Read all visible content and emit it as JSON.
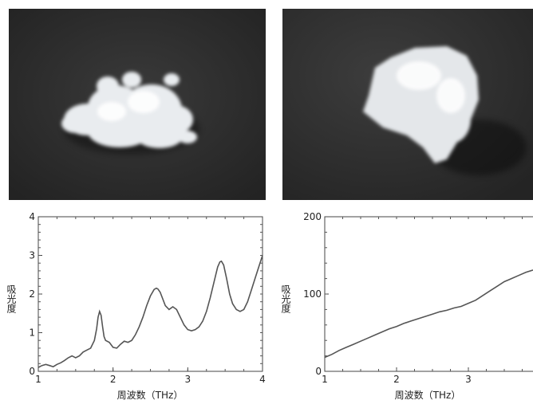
{
  "photos": [
    {
      "name": "sample-photo-left",
      "bg": "#2c2c2c",
      "sample": "white-powder-clump"
    },
    {
      "name": "sample-photo-right",
      "bg": "#303030",
      "sample": "white-fluffy-fiber"
    }
  ],
  "chart_data": [
    {
      "type": "line",
      "title": "",
      "xlabel": "周波数（THz）",
      "ylabel": "吸光度",
      "xlim": [
        1,
        4
      ],
      "ylim": [
        0,
        4
      ],
      "xticks": [
        "1",
        "2",
        "3",
        "4"
      ],
      "yticks": [
        "0",
        "1",
        "2",
        "3",
        "4"
      ],
      "grid": false,
      "line_color": "#555555",
      "series": [
        {
          "x": [
            1.0,
            1.05,
            1.1,
            1.15,
            1.2,
            1.25,
            1.3,
            1.35,
            1.4,
            1.45,
            1.5,
            1.55,
            1.6,
            1.65,
            1.7,
            1.75,
            1.78,
            1.8,
            1.82,
            1.84,
            1.86,
            1.88,
            1.9,
            1.95,
            2.0,
            2.05,
            2.1,
            2.15,
            2.2,
            2.25,
            2.3,
            2.35,
            2.4,
            2.45,
            2.5,
            2.55,
            2.58,
            2.6,
            2.63,
            2.66,
            2.7,
            2.75,
            2.8,
            2.85,
            2.9,
            2.95,
            3.0,
            3.05,
            3.1,
            3.15,
            3.2,
            3.25,
            3.3,
            3.35,
            3.4,
            3.43,
            3.45,
            3.48,
            3.52,
            3.56,
            3.6,
            3.65,
            3.7,
            3.75,
            3.8,
            3.85,
            3.9,
            3.95,
            4.0
          ],
          "y": [
            0.1,
            0.15,
            0.18,
            0.15,
            0.12,
            0.18,
            0.22,
            0.28,
            0.35,
            0.4,
            0.35,
            0.4,
            0.5,
            0.55,
            0.6,
            0.8,
            1.1,
            1.4,
            1.55,
            1.45,
            1.15,
            0.9,
            0.8,
            0.75,
            0.62,
            0.6,
            0.7,
            0.78,
            0.75,
            0.8,
            0.95,
            1.15,
            1.4,
            1.7,
            1.95,
            2.12,
            2.15,
            2.13,
            2.05,
            1.9,
            1.7,
            1.6,
            1.67,
            1.6,
            1.4,
            1.2,
            1.08,
            1.05,
            1.08,
            1.15,
            1.3,
            1.55,
            1.9,
            2.3,
            2.7,
            2.83,
            2.85,
            2.75,
            2.4,
            2.0,
            1.75,
            1.6,
            1.55,
            1.6,
            1.8,
            2.1,
            2.4,
            2.7,
            3.0
          ]
        }
      ]
    },
    {
      "type": "line",
      "title": "",
      "xlabel": "周波数（THz）",
      "ylabel": "吸光度",
      "xlim": [
        1,
        4
      ],
      "ylim": [
        0,
        200
      ],
      "xticks": [
        "1",
        "2",
        "3"
      ],
      "yticks": [
        "0",
        "100",
        "200"
      ],
      "grid": false,
      "line_color": "#555555",
      "series": [
        {
          "x": [
            1.0,
            1.1,
            1.2,
            1.3,
            1.4,
            1.5,
            1.6,
            1.7,
            1.8,
            1.9,
            2.0,
            2.1,
            2.2,
            2.3,
            2.4,
            2.5,
            2.6,
            2.7,
            2.8,
            2.9,
            3.0,
            3.1,
            3.2,
            3.3,
            3.4,
            3.5,
            3.6,
            3.7,
            3.8,
            3.9
          ],
          "y": [
            18,
            22,
            27,
            31,
            35,
            39,
            43,
            47,
            51,
            55,
            58,
            62,
            65,
            68,
            71,
            74,
            77,
            79,
            82,
            84,
            88,
            92,
            98,
            104,
            110,
            116,
            120,
            124,
            128,
            131
          ]
        }
      ]
    }
  ]
}
